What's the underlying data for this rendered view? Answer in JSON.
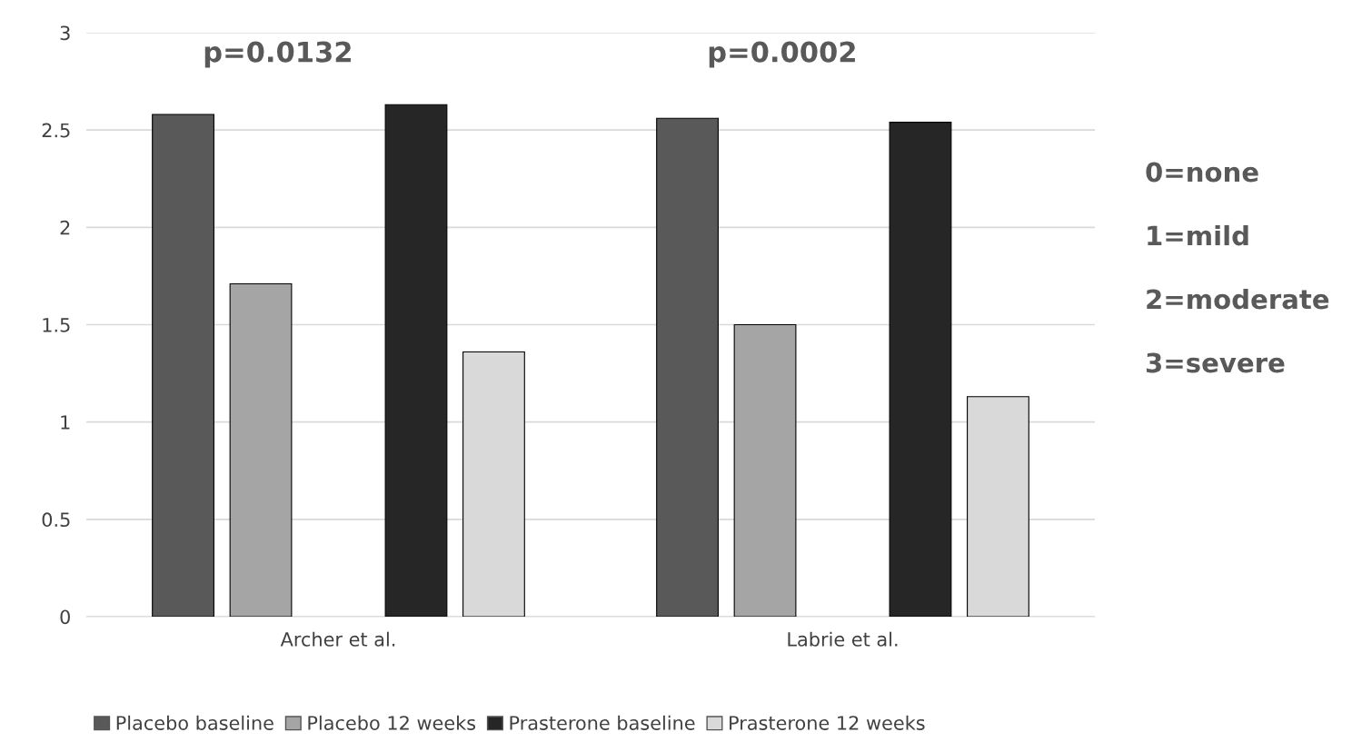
{
  "chart_data": {
    "type": "bar",
    "categories": [
      "Archer et al.",
      "Labrie et al."
    ],
    "series": [
      {
        "name": "Placebo baseline",
        "color": "#595959",
        "values": [
          2.58,
          2.56
        ]
      },
      {
        "name": "Placebo 12 weeks",
        "color": "#a5a5a5",
        "values": [
          1.71,
          1.5
        ]
      },
      {
        "name": "Prasterone baseline",
        "color": "#262626",
        "values": [
          2.63,
          2.54
        ]
      },
      {
        "name": "Prasterone 12 weeks",
        "color": "#d9d9d9",
        "values": [
          1.36,
          1.13
        ]
      }
    ],
    "ylim": [
      0,
      3
    ],
    "yticks": [
      0,
      0.5,
      1,
      1.5,
      2,
      2.5,
      3
    ],
    "grid": "y",
    "legend": "bottom",
    "annotations": [
      "p=0.0132",
      "p=0.0002",
      "0=none",
      "1=mild",
      "2=moderate",
      "3=severe"
    ]
  }
}
